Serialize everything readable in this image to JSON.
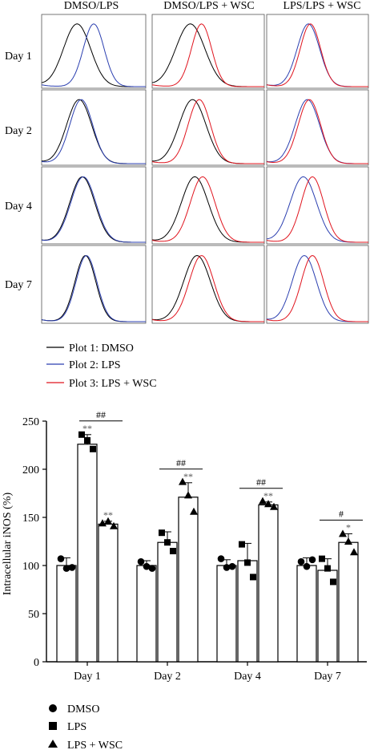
{
  "histograms": {
    "columns": [
      "DMSO/LPS",
      "DMSO/LPS + WSC",
      "LPS/LPS + WSC"
    ],
    "rows": [
      "Day 1",
      "Day 2",
      "Day 4",
      "Day 7"
    ],
    "legend": [
      {
        "label": "Plot 1: DMSO",
        "color": "#000000"
      },
      {
        "label": "Plot 2: LPS",
        "color": "#2b3fb0"
      },
      {
        "label": "Plot 3: LPS + WSC",
        "color": "#e0141e"
      }
    ]
  },
  "chart_data": {
    "type": "bar",
    "categories": [
      "Day 1",
      "Day 2",
      "Day 4",
      "Day 7"
    ],
    "ylabel": "Intracellular iNOS (%)",
    "ylim": [
      0,
      250
    ],
    "yticks": [
      0,
      50,
      100,
      150,
      200,
      250
    ],
    "series": [
      {
        "name": "DMSO",
        "marker": "circle",
        "values": [
          100,
          100,
          100,
          100
        ],
        "errors": [
          8,
          5,
          6,
          8
        ],
        "points": [
          [
            107,
            97,
            98
          ],
          [
            104,
            99,
            97
          ],
          [
            107,
            98,
            99
          ],
          [
            104,
            99,
            106
          ]
        ]
      },
      {
        "name": "LPS",
        "marker": "square",
        "values": [
          226,
          124,
          105,
          95
        ],
        "errors": [
          10,
          11,
          18,
          12
        ],
        "points": [
          [
            236,
            230,
            221
          ],
          [
            134,
            124,
            115
          ],
          [
            122,
            103,
            88
          ],
          [
            107,
            97,
            83
          ]
        ],
        "annotations": [
          "**",
          "",
          "",
          ""
        ]
      },
      {
        "name": "LPS + WSC",
        "marker": "triangle",
        "values": [
          143,
          171,
          163,
          124
        ],
        "errors": [
          3,
          15,
          3,
          9
        ],
        "points": [
          [
            144,
            146,
            141
          ],
          [
            187,
            173,
            156
          ],
          [
            167,
            164,
            161
          ],
          [
            133,
            125,
            114
          ]
        ],
        "annotations": [
          "**",
          "**",
          "**",
          "*"
        ]
      }
    ],
    "brackets": [
      {
        "category": 0,
        "from": 1,
        "to": 2,
        "label": "##"
      },
      {
        "category": 1,
        "from": 1,
        "to": 2,
        "label": "##"
      },
      {
        "category": 2,
        "from": 1,
        "to": 2,
        "label": "##"
      },
      {
        "category": 3,
        "from": 1,
        "to": 2,
        "label": "#"
      }
    ]
  }
}
